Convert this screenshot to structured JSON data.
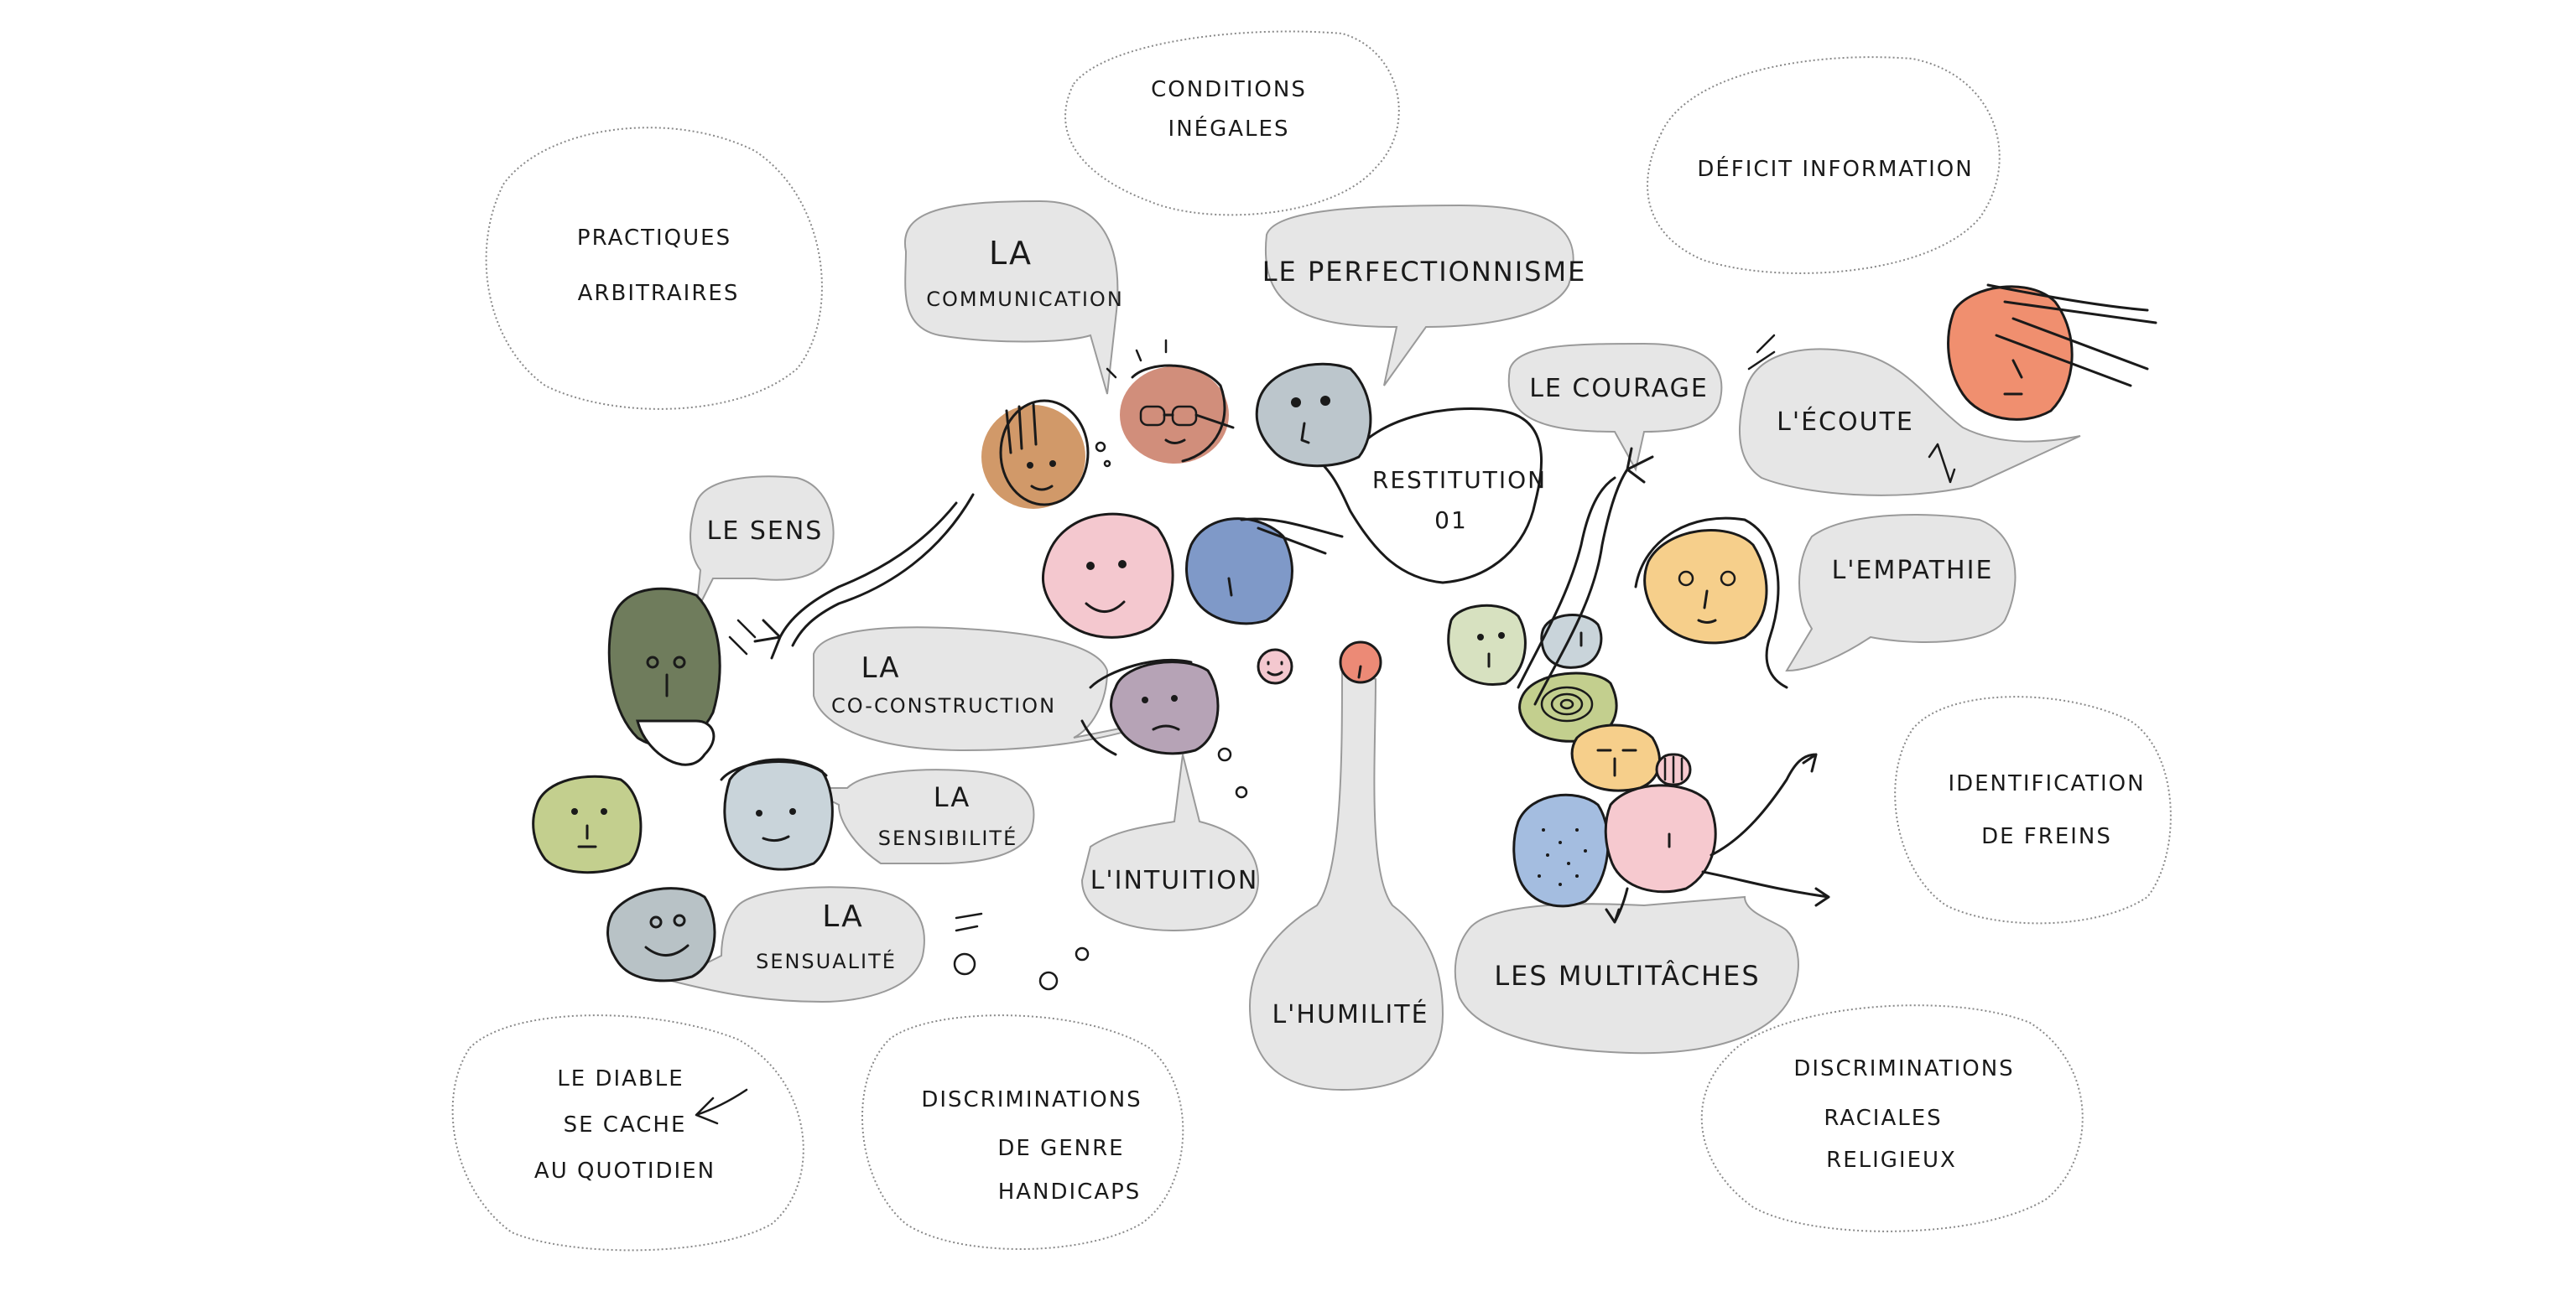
{
  "diagram": {
    "central": {
      "line1": "RESTITUTION",
      "line2": "01"
    },
    "gray_bubbles": {
      "communication": {
        "line1": "LA",
        "line2": "COMMUNICATION"
      },
      "perfectionnisme": {
        "line1": "LE PERFECTIONNISME"
      },
      "courage": {
        "line1": "LE COURAGE"
      },
      "ecoute": {
        "line1": "L'ÉCOUTE"
      },
      "empathie": {
        "line1": "L'EMPATHIE"
      },
      "sens": {
        "line1": "LE SENS"
      },
      "coconstruction": {
        "line1": "LA",
        "line2": "CO-CONSTRUCTION"
      },
      "sensibilite": {
        "line1": "LA",
        "line2": "SENSIBILITÉ"
      },
      "sensualite": {
        "line1": "LA",
        "line2": "SENSUALITÉ"
      },
      "intuition": {
        "line1": "L'INTUITION"
      },
      "humilite": {
        "line1": "L'HUMILITÉ"
      },
      "multitaches": {
        "line1": "LES MULTITÂCHES"
      }
    },
    "white_bubbles": {
      "conditions": {
        "line1": "CONDITIONS",
        "line2": "INÉGALES"
      },
      "pratiques": {
        "line1": "PRACTIQUES",
        "line2": "ARBITRAIRES"
      },
      "deficit": {
        "line1": "DÉFICIT INFORMATION"
      },
      "identification": {
        "line1": "IDENTIFICATION",
        "line2": "DE FREINS"
      },
      "diable": {
        "line1": "LE DIABLE",
        "line2": "SE CACHE",
        "line3": "AU QUOTIDIEN"
      },
      "genre": {
        "line1": "DISCRIMINATIONS",
        "line2": "DE GENRE",
        "line3": "HANDICAPS"
      },
      "raciales": {
        "line1": "DISCRIMINATIONS",
        "line2": "RACIALES",
        "line3": "RELIGIEUX"
      }
    },
    "colors": {
      "gray_bubble": "#e6e6e6",
      "orange_face": "#c9874f",
      "terracotta_face": "#c97a64",
      "slate_face": "#bcc6cc",
      "pink_face": "#f4c8cf",
      "blue_face": "#7f99c8",
      "olive_face": "#6f7c5c",
      "lime_face": "#c3cf8e",
      "light_slate_face": "#c9d4da",
      "gray_face": "#b8c2c6",
      "mauve_face": "#b6a3b6",
      "coral_face": "#ec8a76",
      "sage_face": "#d7e1c0",
      "yellow_face": "#f6cf8b",
      "salmon_face": "#f08f6f",
      "dotted_blue_face": "#a4bde0",
      "light_pink_face": "#f6c9cf"
    }
  }
}
